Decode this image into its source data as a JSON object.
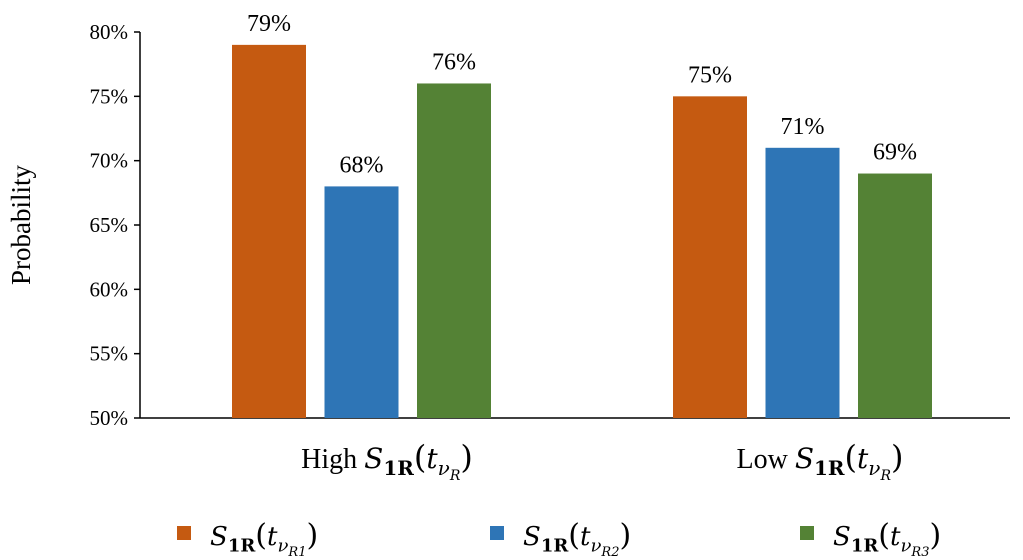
{
  "chart_data": {
    "type": "bar",
    "ylabel": "Probability",
    "ylim": [
      50,
      80
    ],
    "yticks": [
      "50%",
      "55%",
      "60%",
      "65%",
      "70%",
      "75%",
      "80%"
    ],
    "categories": [
      {
        "prefix": "High",
        "symbol": "S",
        "sub": "1R",
        "arg": "t",
        "argsub": "ν",
        "argsubsub": "R"
      },
      {
        "prefix": "Low",
        "symbol": "S",
        "sub": "1R",
        "arg": "t",
        "argsub": "ν",
        "argsubsub": "R"
      }
    ],
    "series": [
      {
        "name": "S1R(tνR1)",
        "symbol": "S",
        "sub": "1R",
        "arg": "t",
        "argsub": "ν",
        "argsubsub": "R1",
        "color": "#c55a11",
        "values": [
          79,
          75
        ],
        "labels": [
          "79%",
          "75%"
        ]
      },
      {
        "name": "S1R(tνR2)",
        "symbol": "S",
        "sub": "1R",
        "arg": "t",
        "argsub": "ν",
        "argsubsub": "R2",
        "color": "#2e75b6",
        "values": [
          68,
          71
        ],
        "labels": [
          "68%",
          "71%"
        ]
      },
      {
        "name": "S1R(tνR3)",
        "symbol": "S",
        "sub": "1R",
        "arg": "t",
        "argsub": "ν",
        "argsubsub": "R3",
        "color": "#548235",
        "values": [
          76,
          69
        ],
        "labels": [
          "76%",
          "69%"
        ]
      }
    ],
    "legend_position": "bottom"
  }
}
